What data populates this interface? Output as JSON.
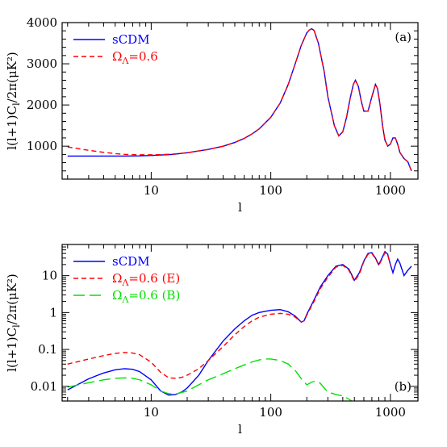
{
  "chart_data": [
    {
      "type": "line",
      "panel_label": "(a)",
      "xlabel": "l",
      "ylabel": "l(l+1)C",
      "ylabel_sub": "l",
      "ylabel_rest": "/2π(μK²)",
      "xscale": "log",
      "yscale": "linear",
      "xlim": [
        1.8,
        1700
      ],
      "ylim": [
        200,
        4000
      ],
      "xticks": [
        10,
        100,
        1000
      ],
      "xtick_labels": [
        "10",
        "100",
        "1000"
      ],
      "yticks": [
        1000,
        2000,
        3000,
        4000
      ],
      "ytick_labels": [
        "1000",
        "2000",
        "3000",
        "4000"
      ],
      "legend_position": "top-left",
      "series": [
        {
          "name": "sCDM",
          "name_sub": "",
          "name_tail": "",
          "color": "#0000ff",
          "dash": "solid",
          "x": [
            2,
            3,
            4,
            5,
            6,
            8,
            10,
            15,
            20,
            30,
            40,
            50,
            60,
            70,
            80,
            100,
            120,
            140,
            160,
            180,
            200,
            210,
            220,
            230,
            250,
            280,
            300,
            340,
            370,
            400,
            430,
            460,
            490,
            510,
            540,
            570,
            600,
            650,
            700,
            750,
            780,
            820,
            860,
            900,
            950,
            1000,
            1050,
            1100,
            1150,
            1200,
            1300,
            1400,
            1500
          ],
          "y": [
            760,
            760,
            760,
            760,
            760,
            765,
            775,
            800,
            840,
            920,
            1000,
            1090,
            1190,
            1300,
            1420,
            1700,
            2050,
            2500,
            3000,
            3450,
            3750,
            3820,
            3850,
            3810,
            3500,
            2800,
            2200,
            1500,
            1250,
            1350,
            1700,
            2150,
            2500,
            2600,
            2450,
            2100,
            1850,
            1850,
            2200,
            2500,
            2400,
            2000,
            1500,
            1150,
            1000,
            1050,
            1200,
            1200,
            1050,
            850,
            700,
            620,
            400
          ]
        },
        {
          "name": "Ω",
          "name_sub": "Λ",
          "name_tail": "=0.6",
          "color": "#ff0000",
          "dash": "6,4",
          "x": [
            2,
            3,
            4,
            5,
            6,
            8,
            10,
            15,
            20,
            30,
            40,
            50,
            60,
            70,
            80,
            100,
            120,
            140,
            160,
            180,
            200,
            210,
            220,
            230,
            250,
            280,
            300,
            340,
            370,
            400,
            430,
            460,
            490,
            510,
            540,
            570,
            600,
            650,
            700,
            750,
            780,
            820,
            860,
            900,
            950,
            1000,
            1050,
            1100,
            1150,
            1200,
            1300,
            1400,
            1500
          ],
          "y": [
            980,
            900,
            850,
            820,
            800,
            790,
            790,
            805,
            840,
            920,
            1000,
            1090,
            1190,
            1300,
            1420,
            1700,
            2050,
            2500,
            3000,
            3450,
            3750,
            3820,
            3850,
            3810,
            3500,
            2800,
            2200,
            1500,
            1250,
            1350,
            1700,
            2150,
            2500,
            2600,
            2450,
            2100,
            1850,
            1850,
            2200,
            2500,
            2400,
            2000,
            1500,
            1150,
            1000,
            1050,
            1200,
            1200,
            1050,
            850,
            700,
            620,
            400
          ]
        }
      ]
    },
    {
      "type": "line",
      "panel_label": "(b)",
      "xlabel": "l",
      "ylabel": "l(l+1)C",
      "ylabel_sub": "l",
      "ylabel_rest": "/2π(μK²)",
      "xscale": "log",
      "yscale": "log",
      "xlim": [
        1.8,
        1700
      ],
      "ylim": [
        0.004,
        70
      ],
      "xticks": [
        10,
        100,
        1000
      ],
      "xtick_labels": [
        "10",
        "100",
        "1000"
      ],
      "yticks": [
        0.01,
        0.1,
        1,
        10
      ],
      "ytick_labels": [
        "0.01",
        "0.1",
        "1",
        "10"
      ],
      "legend_position": "top-left",
      "series": [
        {
          "name": "sCDM",
          "name_sub": "",
          "name_tail": "",
          "color": "#0000ff",
          "dash": "solid",
          "x": [
            2,
            3,
            4,
            5,
            6,
            7,
            8,
            10,
            12,
            14,
            16,
            18,
            20,
            25,
            30,
            40,
            50,
            60,
            70,
            80,
            100,
            120,
            140,
            160,
            180,
            190,
            200,
            230,
            260,
            300,
            350,
            400,
            450,
            500,
            550,
            600,
            650,
            700,
            750,
            800,
            850,
            900,
            950,
            1000,
            1050,
            1100,
            1150,
            1200,
            1300,
            1400,
            1500
          ],
          "y": [
            0.008,
            0.016,
            0.023,
            0.028,
            0.03,
            0.029,
            0.025,
            0.015,
            0.0075,
            0.0058,
            0.006,
            0.007,
            0.009,
            0.02,
            0.05,
            0.17,
            0.36,
            0.6,
            0.85,
            1.0,
            1.15,
            1.2,
            1.05,
            0.8,
            0.55,
            0.6,
            0.9,
            2.2,
            5.0,
            10.0,
            18.0,
            20.0,
            15.0,
            7.5,
            12.0,
            25.0,
            40.0,
            42.0,
            30.0,
            20.0,
            30.0,
            45.0,
            38.0,
            20.0,
            12.0,
            20.0,
            28.0,
            22.0,
            10.0,
            14.0,
            18.0
          ]
        },
        {
          "name": "Ω",
          "name_sub": "Λ",
          "name_tail": "=0.6 (E)",
          "color": "#ff0000",
          "dash": "6,4",
          "x": [
            2,
            3,
            4,
            5,
            6,
            7,
            8,
            10,
            12,
            14,
            16,
            18,
            20,
            25,
            30,
            40,
            50,
            60,
            70,
            80,
            100,
            120,
            140,
            160,
            180,
            190,
            200,
            230,
            260,
            300,
            350,
            400,
            450,
            500,
            550,
            600,
            650,
            700,
            750,
            800,
            850,
            900,
            950,
            1000
          ],
          "y": [
            0.04,
            0.055,
            0.068,
            0.078,
            0.083,
            0.08,
            0.072,
            0.045,
            0.024,
            0.017,
            0.0165,
            0.0175,
            0.02,
            0.03,
            0.05,
            0.12,
            0.25,
            0.42,
            0.6,
            0.75,
            0.9,
            0.95,
            0.9,
            0.75,
            0.55,
            0.6,
            0.85,
            2.0,
            4.5,
            9.0,
            17.0,
            19.0,
            14.0,
            7.0,
            11.0,
            24.0,
            38.0,
            40.0,
            29.0,
            19.0,
            28.0,
            42.0,
            36.0,
            20.0
          ]
        },
        {
          "name": "Ω",
          "name_sub": "Λ",
          "name_tail": "=0.6 (B)",
          "color": "#00e000",
          "dash": "14,6",
          "x": [
            2,
            3,
            4,
            5,
            6,
            7,
            8,
            10,
            12,
            14,
            16,
            18,
            20,
            25,
            30,
            40,
            50,
            60,
            70,
            80,
            90,
            100,
            120,
            140,
            160,
            180,
            200,
            220,
            240,
            260,
            280,
            300,
            350,
            400,
            450,
            500
          ],
          "y": [
            0.0095,
            0.0125,
            0.015,
            0.0165,
            0.017,
            0.0165,
            0.015,
            0.011,
            0.0075,
            0.0063,
            0.0062,
            0.0068,
            0.0075,
            0.011,
            0.015,
            0.022,
            0.03,
            0.038,
            0.046,
            0.052,
            0.055,
            0.055,
            0.05,
            0.04,
            0.027,
            0.016,
            0.011,
            0.013,
            0.014,
            0.012,
            0.009,
            0.007,
            0.006,
            0.0055,
            0.0045,
            0.0035
          ]
        }
      ]
    }
  ]
}
